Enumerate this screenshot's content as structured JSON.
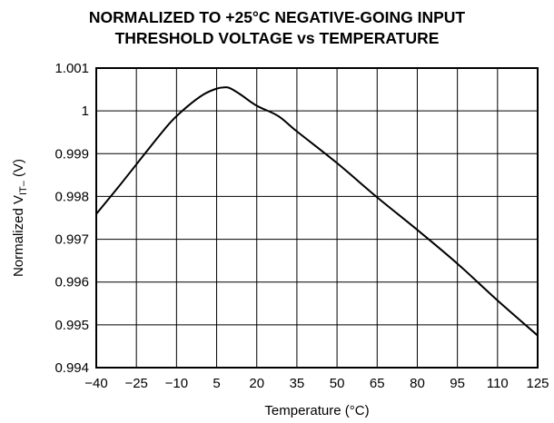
{
  "chart_data": {
    "type": "line",
    "title": [
      "NORMALIZED TO +25°C NEGATIVE-GOING INPUT",
      "THRESHOLD VOLTAGE vs TEMPERATURE"
    ],
    "xlabel": "Temperature (°C)",
    "ylabel": {
      "prefix": "Normalized V",
      "sub": "IT–",
      "suffix": " (V)"
    },
    "x_ticks": [
      -40,
      -25,
      -10,
      5,
      20,
      35,
      50,
      65,
      80,
      95,
      110,
      125
    ],
    "x_tick_labels": [
      "−40",
      "−25",
      "−10",
      "5",
      "20",
      "35",
      "50",
      "65",
      "80",
      "95",
      "110",
      "125"
    ],
    "y_ticks": [
      0.994,
      0.995,
      0.996,
      0.997,
      0.998,
      0.999,
      1.0,
      1.001
    ],
    "y_tick_labels": [
      "0.994",
      "0.995",
      "0.996",
      "0.997",
      "0.998",
      "0.999",
      "1",
      "1.001"
    ],
    "xlim": [
      -40,
      125
    ],
    "ylim": [
      0.994,
      1.001
    ],
    "grid": true,
    "series": [
      {
        "x": [
          -40,
          -32,
          -25,
          -18,
          -12,
          -6,
          0,
          5,
          8,
          10,
          14,
          20,
          28,
          35,
          50,
          65,
          80,
          95,
          110,
          125
        ],
        "y": [
          0.99759,
          0.9982,
          0.99875,
          0.9993,
          0.99975,
          1.0001,
          1.00038,
          1.00052,
          1.00055,
          1.00053,
          1.00038,
          1.00012,
          0.99988,
          0.99952,
          0.99878,
          0.99798,
          0.99722,
          0.99643,
          0.99557,
          0.99475
        ]
      }
    ]
  }
}
